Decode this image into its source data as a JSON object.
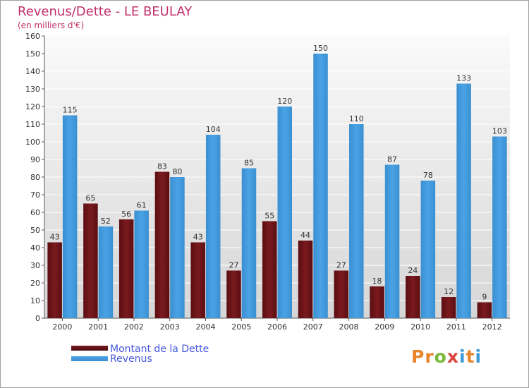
{
  "header": {
    "title": "Revenus/Dette - LE BEULAY",
    "subtitle": "(en milliers d'€)"
  },
  "logo": {
    "text": "Proxiti"
  },
  "colors": {
    "dette": "#7a1a1e",
    "revenus": "#4aa3e6",
    "title": "#c0306a",
    "legend_text": "#4455dd"
  },
  "chart_data": {
    "type": "bar",
    "title": "Revenus/Dette - LE BEULAY",
    "ylabel": "(en milliers d'€)",
    "xlabel": "",
    "ylim": [
      0,
      160
    ],
    "yticks": [
      0,
      10,
      20,
      30,
      40,
      50,
      60,
      70,
      80,
      90,
      100,
      110,
      120,
      130,
      140,
      150,
      160
    ],
    "grid": true,
    "legend_position": "bottom-left",
    "categories": [
      "2000",
      "2001",
      "2002",
      "2003",
      "2004",
      "2005",
      "2006",
      "2007",
      "2008",
      "2009",
      "2010",
      "2011",
      "2012"
    ],
    "series": [
      {
        "name": "Montant de la Dette",
        "values": [
          43,
          65,
          56,
          83,
          43,
          27,
          55,
          44,
          27,
          18,
          24,
          12,
          9
        ]
      },
      {
        "name": "Revenus",
        "values": [
          115,
          52,
          61,
          80,
          104,
          85,
          120,
          150,
          110,
          87,
          78,
          133,
          103
        ]
      }
    ]
  }
}
